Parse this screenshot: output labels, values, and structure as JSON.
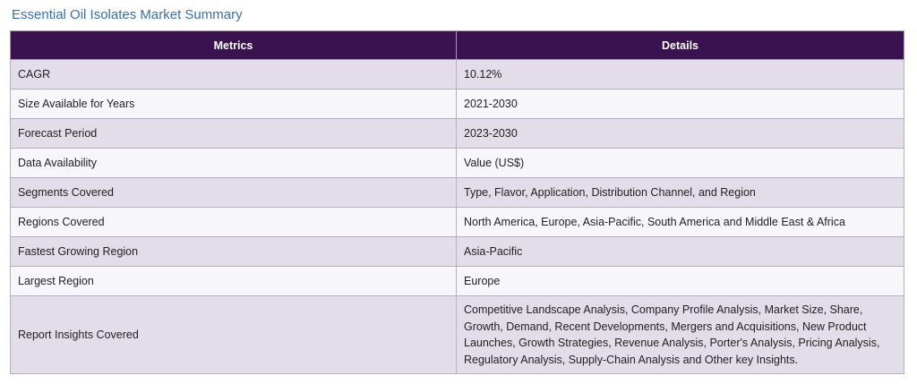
{
  "title": "Essential Oil Isolates Market Summary",
  "table": {
    "headers": {
      "metrics": "Metrics",
      "details": "Details"
    },
    "rows": [
      {
        "metric": "CAGR",
        "detail": "10.12%"
      },
      {
        "metric": "Size Available for Years",
        "detail": "2021-2030"
      },
      {
        "metric": "Forecast Period",
        "detail": "2023-2030"
      },
      {
        "metric": "Data Availability",
        "detail": "Value (US$)"
      },
      {
        "metric": "Segments Covered",
        "detail": "Type, Flavor, Application, Distribution Channel, and Region"
      },
      {
        "metric": "Regions Covered",
        "detail": "North America, Europe, Asia-Pacific, South America and Middle East & Africa"
      },
      {
        "metric": "Fastest Growing Region",
        "detail": "Asia-Pacific"
      },
      {
        "metric": "Largest Region",
        "detail": "Europe"
      },
      {
        "metric": "Report Insights Covered",
        "detail": "Competitive Landscape Analysis, Company Profile Analysis, Market Size, Share, Growth, Demand, Recent Developments, Mergers and Acquisitions, New Product Launches, Growth Strategies, Revenue Analysis, Porter's Analysis, Pricing Analysis, Regulatory Analysis, Supply-Chain Analysis and Other key Insights."
      }
    ]
  },
  "colors": {
    "title": "#3a6fb0",
    "header_bg": "#3b1250",
    "row_odd": "#e2dde8",
    "row_even": "#f7f6fb"
  }
}
